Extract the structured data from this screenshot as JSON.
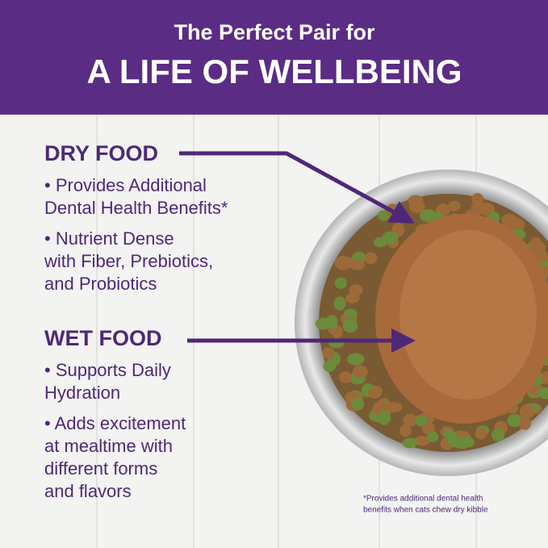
{
  "header": {
    "line1": "The Perfect Pair for",
    "line2": "A LIFE OF WELLBEING"
  },
  "sections": [
    {
      "title": "DRY FOOD",
      "bullets": [
        [
          "• Provides Additional",
          "Dental Health Benefits*"
        ],
        [
          "• Nutrient Dense",
          "with Fiber, Prebiotics,",
          "and Probiotics"
        ]
      ]
    },
    {
      "title": "WET FOOD",
      "bullets": [
        [
          "• Supports Daily",
          "Hydration"
        ],
        [
          "• Adds excitement",
          "at mealtime with",
          "different forms",
          "and flavors"
        ]
      ]
    }
  ],
  "footnote": [
    "*Provides additional dental health",
    "benefits when cats chew dry kibble"
  ]
}
